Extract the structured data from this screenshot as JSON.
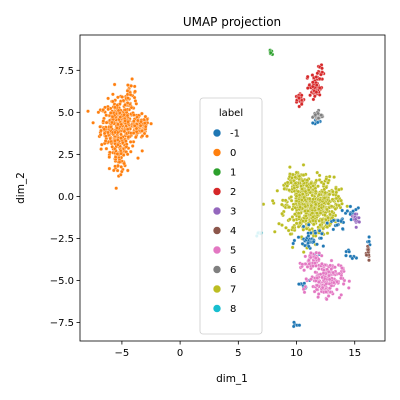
{
  "chart_data": {
    "type": "scatter",
    "title": "UMAP projection",
    "xlabel": "dim_1",
    "ylabel": "dim_2",
    "xlim": [
      -8.6,
      17.6
    ],
    "ylim": [
      -8.6,
      9.6
    ],
    "xticks": [
      -5,
      0,
      5,
      10,
      15
    ],
    "yticks": [
      -7.5,
      -5.0,
      -2.5,
      0.0,
      2.5,
      5.0,
      7.5
    ],
    "xtick_labels": [
      "−5",
      "0",
      "5",
      "10",
      "15"
    ],
    "ytick_labels": [
      "−7.5",
      "−5.0",
      "−2.5",
      "0.0",
      "2.5",
      "5.0",
      "7.5"
    ],
    "grid": false,
    "legend": {
      "title": "label",
      "placement": "center",
      "entries": [
        {
          "label": "-1",
          "color": "#1f77b4"
        },
        {
          "label": "0",
          "color": "#ff7f0e"
        },
        {
          "label": "1",
          "color": "#2ca02c"
        },
        {
          "label": "2",
          "color": "#d62728"
        },
        {
          "label": "3",
          "color": "#9467bd"
        },
        {
          "label": "4",
          "color": "#8c564b"
        },
        {
          "label": "5",
          "color": "#e377c2"
        },
        {
          "label": "6",
          "color": "#7f7f7f"
        },
        {
          "label": "7",
          "color": "#bcbd22"
        },
        {
          "label": "8",
          "color": "#17becf"
        }
      ]
    },
    "series": [
      {
        "label": "0",
        "color": "#ff7f0e",
        "clusters": [
          {
            "cx": -5.3,
            "cy": 4.2,
            "sx": 1.0,
            "sy": 1.0,
            "n": 380
          },
          {
            "cx": -3.4,
            "cy": 4.1,
            "sx": 0.5,
            "sy": 0.45,
            "n": 90
          },
          {
            "cx": -4.3,
            "cy": 6.0,
            "sx": 0.4,
            "sy": 0.55,
            "n": 40
          },
          {
            "cx": -5.3,
            "cy": 2.3,
            "sx": 0.45,
            "sy": 0.6,
            "n": 60
          }
        ]
      },
      {
        "label": "7",
        "color": "#bcbd22",
        "clusters": [
          {
            "cx": 11.1,
            "cy": -0.6,
            "sx": 1.4,
            "sy": 1.15,
            "n": 520
          },
          {
            "cx": 12.7,
            "cy": -0.4,
            "sx": 0.8,
            "sy": 0.8,
            "n": 90
          },
          {
            "cx": 10.0,
            "cy": 0.9,
            "sx": 0.7,
            "sy": 0.5,
            "n": 60
          }
        ]
      },
      {
        "label": "-1",
        "color": "#1f77b4",
        "clusters": [
          {
            "cx": 11.3,
            "cy": -2.6,
            "sx": 0.8,
            "sy": 0.45,
            "n": 40
          },
          {
            "cx": 13.6,
            "cy": -1.6,
            "sx": 0.5,
            "sy": 0.35,
            "n": 18
          },
          {
            "cx": 10.5,
            "cy": -5.4,
            "sx": 0.5,
            "sy": 0.3,
            "n": 10
          },
          {
            "cx": 14.8,
            "cy": -0.9,
            "sx": 0.4,
            "sy": 0.3,
            "n": 10
          },
          {
            "cx": 9.8,
            "cy": -7.6,
            "sx": 0.2,
            "sy": 0.2,
            "n": 5
          },
          {
            "cx": 14.6,
            "cy": -3.5,
            "sx": 0.4,
            "sy": 0.3,
            "n": 8
          },
          {
            "cx": 16.2,
            "cy": -2.8,
            "sx": 0.15,
            "sy": 0.2,
            "n": 4
          },
          {
            "cx": 11.7,
            "cy": 4.4,
            "sx": 0.3,
            "sy": 0.15,
            "n": 8
          }
        ]
      },
      {
        "label": "5",
        "color": "#e377c2",
        "clusters": [
          {
            "cx": 12.5,
            "cy": -4.9,
            "sx": 0.95,
            "sy": 0.7,
            "n": 180
          },
          {
            "cx": 11.2,
            "cy": -3.9,
            "sx": 0.5,
            "sy": 0.35,
            "n": 40
          }
        ]
      },
      {
        "label": "2",
        "color": "#d62728",
        "clusters": [
          {
            "cx": 11.6,
            "cy": 6.5,
            "sx": 0.35,
            "sy": 0.45,
            "n": 60
          },
          {
            "cx": 12.0,
            "cy": 7.4,
            "sx": 0.2,
            "sy": 0.3,
            "n": 20
          },
          {
            "cx": 10.3,
            "cy": 5.8,
            "sx": 0.25,
            "sy": 0.25,
            "n": 22
          }
        ]
      },
      {
        "label": "6",
        "color": "#7f7f7f",
        "clusters": [
          {
            "cx": 11.8,
            "cy": 4.8,
            "sx": 0.3,
            "sy": 0.2,
            "n": 22
          }
        ]
      },
      {
        "label": "3",
        "color": "#9467bd",
        "clusters": [
          {
            "cx": 15.2,
            "cy": -1.3,
            "sx": 0.2,
            "sy": 0.3,
            "n": 16
          }
        ]
      },
      {
        "label": "4",
        "color": "#8c564b",
        "clusters": [
          {
            "cx": 16.1,
            "cy": -3.3,
            "sx": 0.15,
            "sy": 0.35,
            "n": 16
          }
        ]
      },
      {
        "label": "1",
        "color": "#2ca02c",
        "clusters": [
          {
            "cx": 7.8,
            "cy": 8.6,
            "sx": 0.12,
            "sy": 0.12,
            "n": 8
          }
        ]
      },
      {
        "label": "8",
        "color": "#17becf",
        "clusters": [
          {
            "cx": 6.8,
            "cy": -2.1,
            "sx": 0.25,
            "sy": 0.2,
            "n": 6
          }
        ]
      }
    ]
  }
}
